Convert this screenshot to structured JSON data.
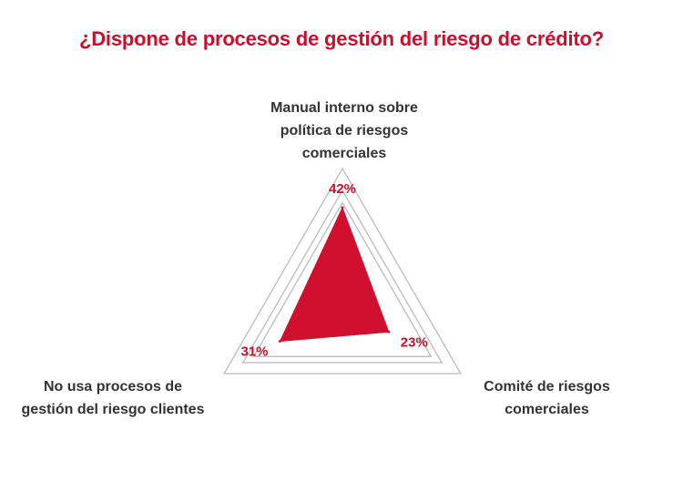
{
  "title": "¿Dispone de procesos de gestión del riesgo de crédito?",
  "chart_data": {
    "type": "radar",
    "title": "¿Dispone de procesos de gestión del riesgo de crédito?",
    "categories": [
      "Manual interno sobre política de riesgos comerciales",
      "Comité de riesgos comerciales",
      "No usa procesos de gestión del riesgo clientes"
    ],
    "values": [
      42,
      23,
      31
    ],
    "value_labels": [
      "42%",
      "23%",
      "31%"
    ],
    "unit": "%",
    "series_color": "#d0102e",
    "grid_rings": 3
  },
  "labels": {
    "top_line1": "Manual interno sobre",
    "top_line2": "política de riesgos",
    "top_line3": "comerciales",
    "left_line1": "No usa procesos de",
    "left_line2": "gestión del riesgo clientes",
    "right_line1": "Comité de riesgos",
    "right_line2": "comerciales"
  },
  "colors": {
    "title": "#c8102e",
    "fill": "#d0102e",
    "grid": "#bbbbbb",
    "text": "#333333"
  }
}
